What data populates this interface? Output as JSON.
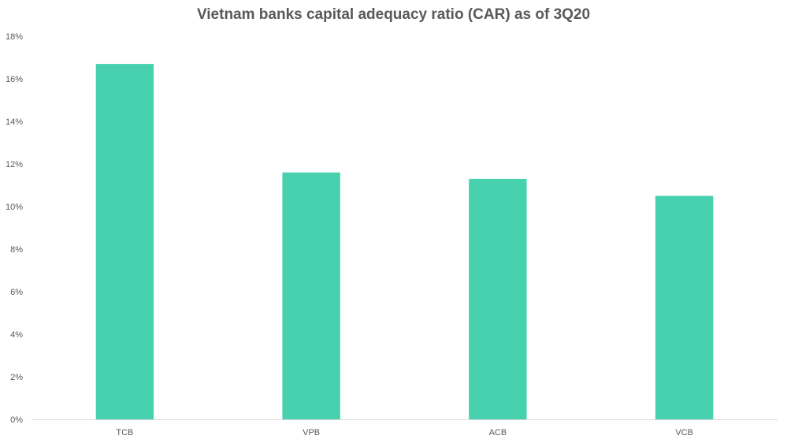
{
  "chart_data": {
    "type": "bar",
    "title": "Vietnam banks capital adequacy ratio (CAR) as of 3Q20",
    "categories": [
      "TCB",
      "VPB",
      "ACB",
      "VCB"
    ],
    "values": [
      0.167,
      0.116,
      0.113,
      0.105
    ],
    "ylim": [
      0,
      0.18
    ],
    "yticks": [
      0,
      0.02,
      0.04,
      0.06,
      0.08,
      0.1,
      0.12,
      0.14,
      0.16,
      0.18
    ],
    "ytick_labels": [
      "0%",
      "2%",
      "4%",
      "6%",
      "8%",
      "10%",
      "12%",
      "14%",
      "16%",
      "18%"
    ],
    "xlabel": "",
    "ylabel": "",
    "grid": false,
    "legend": "none",
    "bar_color": "#48D1AE",
    "axis_color": "#D9D9D9",
    "text_color": "#595959"
  }
}
